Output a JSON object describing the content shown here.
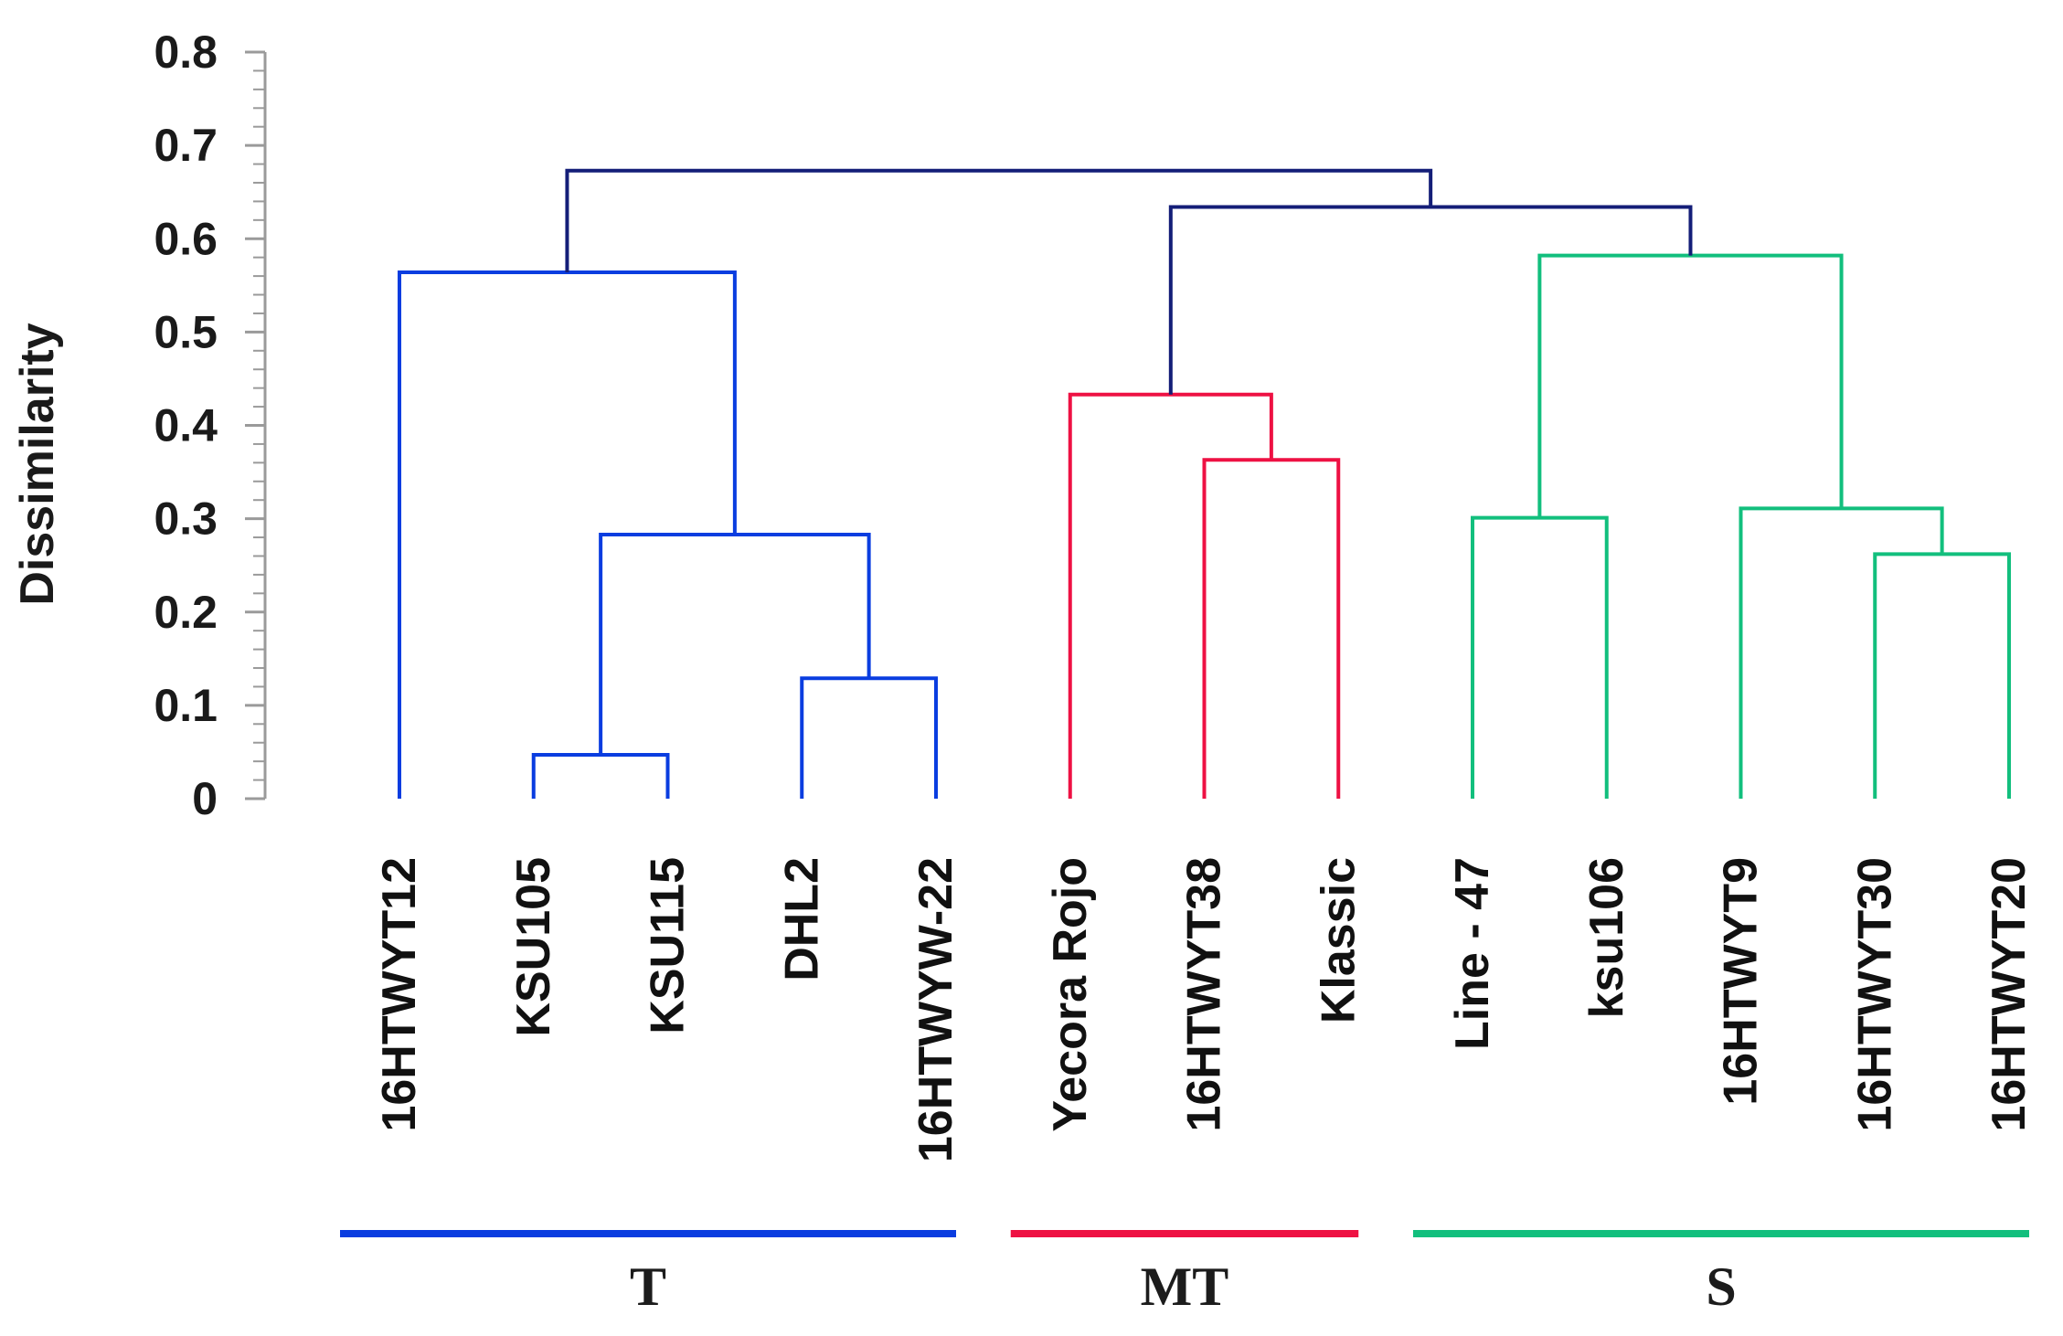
{
  "chart_data": {
    "type": "dendrogram",
    "ylabel": "Dissimilarity",
    "ylim": [
      0,
      0.8
    ],
    "yticks": [
      "0",
      "0.1",
      "0.2",
      "0.3",
      "0.4",
      "0.5",
      "0.6",
      "0.7",
      "0.8"
    ],
    "leaves": [
      "16HTWYT12",
      "KSU105",
      "KSU115",
      "DHL2",
      "16HTWYW-22",
      "Yecora Rojo",
      "16HTWYT38",
      "Klassic",
      "Line - 47",
      "ksu106",
      "16HTWYT9",
      "16HTWYT30",
      "16HTWYT20"
    ],
    "merges": [
      {
        "id": "m1",
        "children": [
          "KSU105",
          "KSU115"
        ],
        "height": 0.047,
        "cluster": "T"
      },
      {
        "id": "m2",
        "children": [
          "DHL2",
          "16HTWYW-22"
        ],
        "height": 0.129,
        "cluster": "T"
      },
      {
        "id": "m3",
        "children": [
          "m1",
          "m2"
        ],
        "height": 0.283,
        "cluster": "T"
      },
      {
        "id": "m4",
        "children": [
          "16HTWYT12",
          "m3"
        ],
        "height": 0.564,
        "cluster": "T"
      },
      {
        "id": "m5",
        "children": [
          "16HTWYT38",
          "Klassic"
        ],
        "height": 0.363,
        "cluster": "MT"
      },
      {
        "id": "m6",
        "children": [
          "Yecora Rojo",
          "m5"
        ],
        "height": 0.433,
        "cluster": "MT"
      },
      {
        "id": "m7",
        "children": [
          "Line - 47",
          "ksu106"
        ],
        "height": 0.301,
        "cluster": "S"
      },
      {
        "id": "m8",
        "children": [
          "16HTWYT30",
          "16HTWYT20"
        ],
        "height": 0.262,
        "cluster": "S"
      },
      {
        "id": "m9",
        "children": [
          "16HTWYT9",
          "m8"
        ],
        "height": 0.311,
        "cluster": "S"
      },
      {
        "id": "m10",
        "children": [
          "m7",
          "m9"
        ],
        "height": 0.582,
        "cluster": "S"
      },
      {
        "id": "m11",
        "children": [
          "m6",
          "m10"
        ],
        "height": 0.634,
        "cluster": "root"
      },
      {
        "id": "m12",
        "children": [
          "m4",
          "m11"
        ],
        "height": 0.673,
        "cluster": "root"
      }
    ],
    "groups": [
      {
        "label": "T",
        "color": "#0a3de0",
        "leaves": [
          "16HTWYT12",
          "KSU105",
          "KSU115",
          "DHL2",
          "16HTWYW-22"
        ]
      },
      {
        "label": "MT",
        "color": "#ee1143",
        "leaves": [
          "Yecora Rojo",
          "16HTWYT38",
          "Klassic"
        ]
      },
      {
        "label": "S",
        "color": "#12bf7d",
        "leaves": [
          "Line - 47",
          "ksu106",
          "16HTWYT9",
          "16HTWYT30",
          "16HTWYT20"
        ]
      }
    ],
    "colors": {
      "T": "#0a3de0",
      "MT": "#ee1143",
      "S": "#12bf7d",
      "root": "#141e78",
      "axis": "#9a9a9a"
    }
  }
}
